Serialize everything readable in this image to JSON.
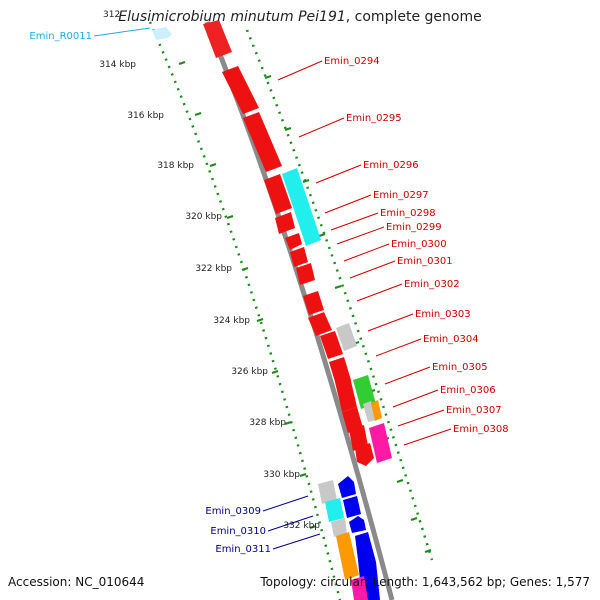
{
  "title": {
    "organism": "Elusimicrobium minutum Pei191",
    "suffix": ", complete genome"
  },
  "footer": {
    "accession": "Accession: NC_010644",
    "summary": "Topology: circular; Length: 1,643,562 bp; Genes: 1,577"
  },
  "colors": {
    "backbone": "#888888",
    "ticks": "#1a8a1a",
    "red_label": "#cc0000",
    "blue_label": "#00008b",
    "rna_label": "#22aadd"
  },
  "scale": {
    "start_label": "312",
    "labels": [
      "314 kbp",
      "316 kbp",
      "318 kbp",
      "320 kbp",
      "322 kbp",
      "324 kbp",
      "326 kbp",
      "328 kbp",
      "330 kbp",
      "332 kbp"
    ]
  },
  "labels": [
    {
      "text": "Emin_R0011",
      "color": "rna"
    },
    {
      "text": "Emin_0294",
      "color": "red"
    },
    {
      "text": "Emin_0295",
      "color": "red"
    },
    {
      "text": "Emin_0296",
      "color": "red"
    },
    {
      "text": "Emin_0297",
      "color": "red"
    },
    {
      "text": "Emin_0298",
      "color": "red"
    },
    {
      "text": "Emin_0299",
      "color": "red"
    },
    {
      "text": "Emin_0300",
      "color": "red"
    },
    {
      "text": "Emin_0301",
      "color": "red"
    },
    {
      "text": "Emin_0302",
      "color": "red"
    },
    {
      "text": "Emin_0303",
      "color": "red"
    },
    {
      "text": "Emin_0304",
      "color": "red"
    },
    {
      "text": "Emin_0305",
      "color": "red"
    },
    {
      "text": "Emin_0306",
      "color": "red"
    },
    {
      "text": "Emin_0307",
      "color": "red"
    },
    {
      "text": "Emin_0308",
      "color": "red"
    },
    {
      "text": "Emin_0309",
      "color": "blue"
    },
    {
      "text": "Emin_0310",
      "color": "blue"
    },
    {
      "text": "Emin_0311",
      "color": "blue"
    }
  ]
}
